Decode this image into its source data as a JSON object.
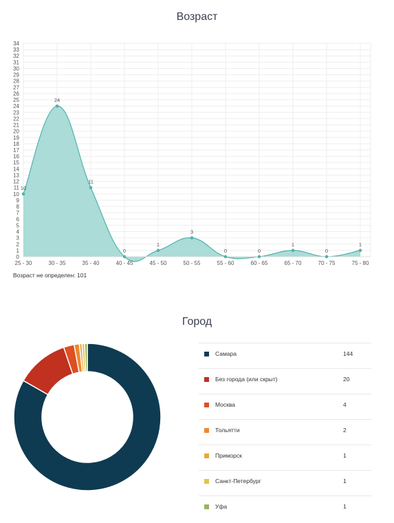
{
  "age": {
    "title": "Возраст",
    "note": "Возраст не определен: 101"
  },
  "city": {
    "title": "Город"
  },
  "chart_data": [
    {
      "type": "area",
      "title": "Возраст",
      "categories": [
        "25 - 30",
        "30 - 35",
        "35 - 40",
        "40 - 45",
        "45 - 50",
        "50 - 55",
        "55 - 60",
        "60 - 65",
        "65 - 70",
        "70 - 75",
        "75 - 80"
      ],
      "values": [
        10,
        24,
        11,
        0,
        1,
        3,
        0,
        0,
        1,
        0,
        1
      ],
      "ylim": [
        0,
        34
      ],
      "grid": true,
      "color": "#4fb3a9",
      "fill": "#a6dad5",
      "xlabel": "",
      "ylabel": ""
    },
    {
      "type": "pie",
      "variant": "donut",
      "title": "Город",
      "legend_position": "right",
      "categories": [
        "Самара",
        "Без города (или скрыт)",
        "Москва",
        "Тольятти",
        "Приморск",
        "Санкт-Петербург",
        "Уфа"
      ],
      "values": [
        144,
        20,
        4,
        2,
        1,
        1,
        1
      ],
      "colors": [
        "#0e3b52",
        "#c0311f",
        "#de4f22",
        "#eb8a30",
        "#e8a83b",
        "#e6c247",
        "#98b45e"
      ]
    }
  ]
}
